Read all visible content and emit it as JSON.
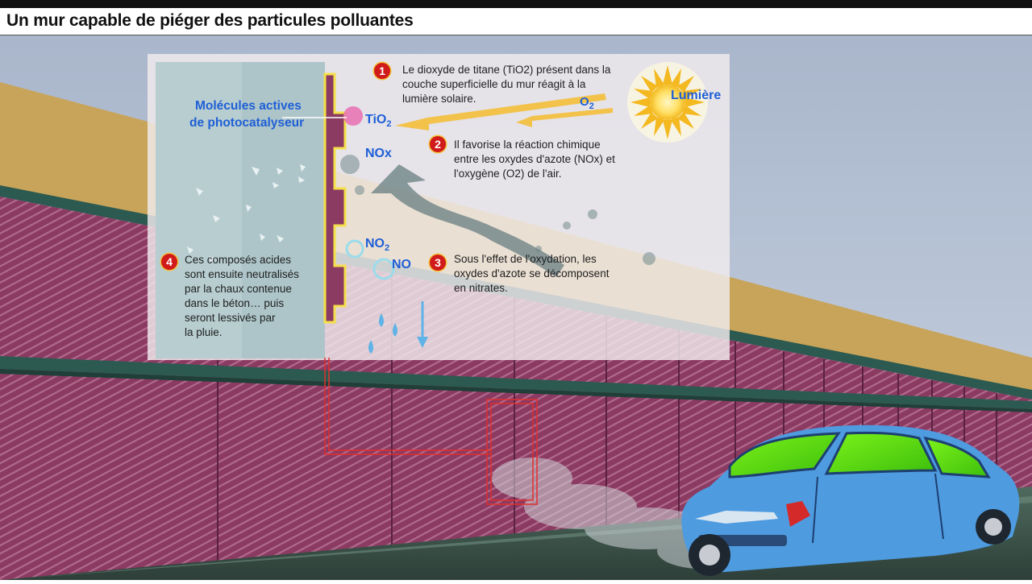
{
  "title": "Un mur capable de piéger des particules polluantes",
  "labels": {
    "molecules_line1": "Molécules actives",
    "molecules_line2": "de photocatalyseur",
    "tio2": "TiO",
    "tio2_sub": "2",
    "nox": "NOx",
    "no2": "NO",
    "no2_sub": "2",
    "no": "NO",
    "o2": "O",
    "o2_sub": "2",
    "lumiere": "Lumière"
  },
  "steps": [
    {
      "number": "1",
      "lines": [
        "Le dioxyde de titane (TiO2) présent dans la",
        "couche superficielle du mur réagit à la",
        "lumière solaire."
      ]
    },
    {
      "number": "2",
      "lines": [
        "Il favorise la réaction chimique",
        "entre les oxydes d'azote (NOx) et",
        "l'oxygène (O2) de l'air."
      ]
    },
    {
      "number": "3",
      "lines": [
        "Sous l'effet de l'oxydation, les",
        "oxydes d'azote se décomposent",
        "en nitrates."
      ]
    },
    {
      "number": "4",
      "lines": [
        "Ces composés acides",
        "sont ensuite neutralisés",
        "par la chaux contenue",
        "dans le béton… puis",
        "seront lessivés par",
        "la pluie."
      ]
    }
  ],
  "colors": {
    "wall": "#8b3a62",
    "wall_top": "#c8a45a",
    "sky": "#b8c6dc",
    "car": "#4e9be0",
    "accent_blue": "#1f5fd6",
    "badge_red": "#d11b1b",
    "callout_red": "#e0302e",
    "arrow_yellow": "#f2c24a"
  }
}
